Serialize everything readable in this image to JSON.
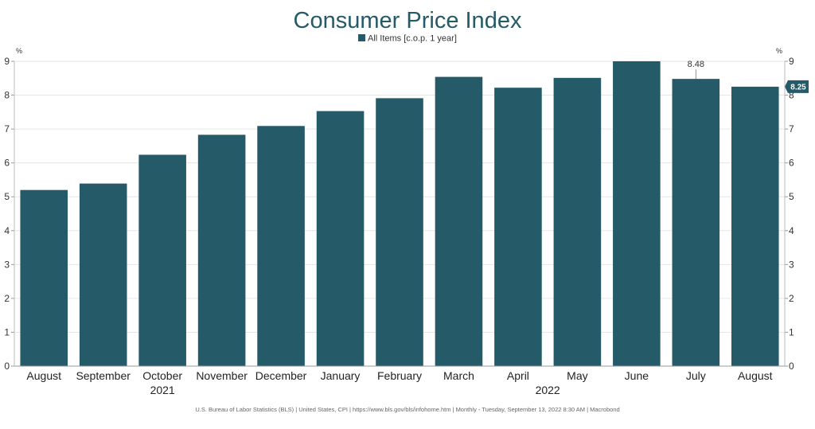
{
  "chart_data": {
    "type": "bar",
    "title": "Consumer Price Index",
    "series": [
      {
        "name": "All Items [c.o.p. 1 year]",
        "values": [
          5.2,
          5.39,
          6.24,
          6.83,
          7.09,
          7.53,
          7.91,
          8.54,
          8.22,
          8.51,
          9.0,
          8.48,
          8.25
        ]
      }
    ],
    "categories": [
      "August",
      "September",
      "October",
      "November",
      "December",
      "January",
      "February",
      "March",
      "April",
      "May",
      "June",
      "July",
      "August"
    ],
    "year_labels": [
      {
        "label": "2021",
        "category_index": 2
      },
      {
        "label": "2022",
        "category_index": 8.5
      }
    ],
    "ylim": [
      0,
      9
    ],
    "y_ticks": [
      "0",
      "1",
      "2",
      "3",
      "4",
      "5",
      "6",
      "7",
      "8",
      "9"
    ],
    "y_unit": "%",
    "bar_color": "#255a68",
    "annotations": [
      {
        "category_index": 11,
        "text": "8.48"
      }
    ],
    "last_value_label": "8.25",
    "grid": true,
    "legend_position": "top-center"
  },
  "source_text": "U.S. Bureau of Labor Statistics (BLS)   |   United States, CPI   |   https://www.bls.gov/bls/infohome.htm   |   Monthly - Tuesday, September 13, 2022 8:30 AM   |   Macrobond"
}
